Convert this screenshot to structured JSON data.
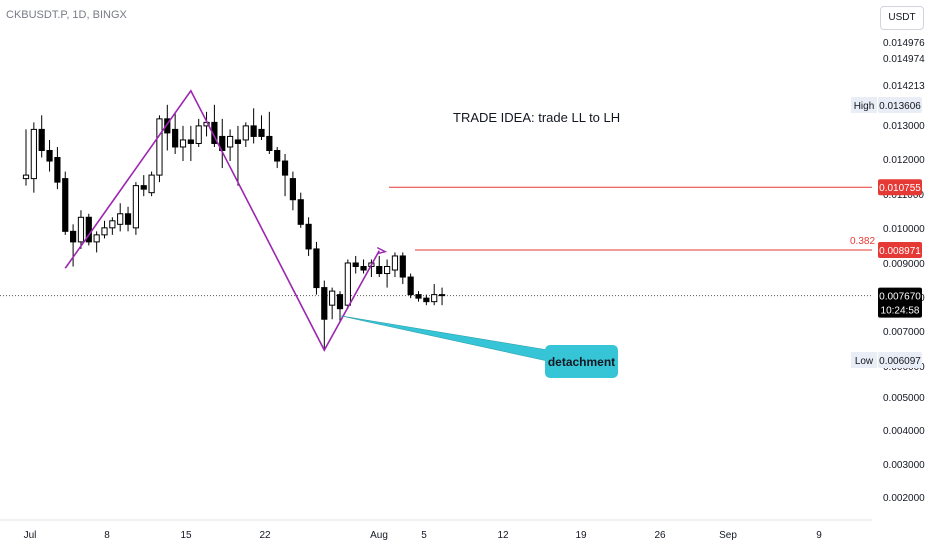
{
  "header": {
    "symbol": "CKBUSDT.P, 1D, BINGX"
  },
  "currency_label": "USDT",
  "colors": {
    "up": "#ffffff",
    "down": "#000000",
    "pattern": "#9c27b0",
    "level": "#e53935",
    "callout": "#36c5d6",
    "axis_badge": "#e53935"
  },
  "chart_data": {
    "type": "candlestick",
    "x_ticks": [
      "Jul",
      "8",
      "15",
      "22",
      "Aug",
      "5",
      "12",
      "19",
      "26",
      "Sep",
      "9"
    ],
    "y_ticks": [
      "0.014976",
      "0.014974",
      "0.014213",
      "0.013000",
      "0.012000",
      "0.011000",
      "0.010000",
      "0.009000",
      "0.008000",
      "0.007000",
      "0.006000",
      "0.005000",
      "0.004000",
      "0.003000",
      "0.002000"
    ],
    "ylim": [
      0.00163,
      0.01583
    ],
    "candles": [
      {
        "d": "07-01",
        "o": 0.011,
        "h": 0.0124,
        "l": 0.0108,
        "c": 0.0111
      },
      {
        "d": "07-02",
        "o": 0.011,
        "h": 0.0126,
        "l": 0.0106,
        "c": 0.0124
      },
      {
        "d": "07-03",
        "o": 0.0124,
        "h": 0.0128,
        "l": 0.0116,
        "c": 0.0118
      },
      {
        "d": "07-04",
        "o": 0.0118,
        "h": 0.0121,
        "l": 0.0112,
        "c": 0.0115
      },
      {
        "d": "07-05",
        "o": 0.0116,
        "h": 0.0119,
        "l": 0.0107,
        "c": 0.0109
      },
      {
        "d": "07-06",
        "o": 0.011,
        "h": 0.0112,
        "l": 0.0094,
        "c": 0.0095
      },
      {
        "d": "07-07",
        "o": 0.0095,
        "h": 0.0097,
        "l": 0.0085,
        "c": 0.0092
      },
      {
        "d": "07-08",
        "o": 0.0092,
        "h": 0.0101,
        "l": 0.009,
        "c": 0.0099
      },
      {
        "d": "07-09",
        "o": 0.0099,
        "h": 0.01,
        "l": 0.0091,
        "c": 0.0092
      },
      {
        "d": "07-10",
        "o": 0.0092,
        "h": 0.0095,
        "l": 0.0089,
        "c": 0.0094
      },
      {
        "d": "07-11",
        "o": 0.0094,
        "h": 0.0098,
        "l": 0.0093,
        "c": 0.0096
      },
      {
        "d": "07-12",
        "o": 0.0096,
        "h": 0.0099,
        "l": 0.0094,
        "c": 0.0098
      },
      {
        "d": "07-13",
        "o": 0.0097,
        "h": 0.0103,
        "l": 0.0095,
        "c": 0.01
      },
      {
        "d": "07-14",
        "o": 0.01,
        "h": 0.0102,
        "l": 0.0095,
        "c": 0.0097
      },
      {
        "d": "07-15",
        "o": 0.0096,
        "h": 0.0109,
        "l": 0.0094,
        "c": 0.0108
      },
      {
        "d": "07-16",
        "o": 0.0108,
        "h": 0.0111,
        "l": 0.0105,
        "c": 0.0107
      },
      {
        "d": "07-17",
        "o": 0.0106,
        "h": 0.0112,
        "l": 0.0105,
        "c": 0.0111
      },
      {
        "d": "07-18",
        "o": 0.0111,
        "h": 0.0128,
        "l": 0.0109,
        "c": 0.0127
      },
      {
        "d": "07-19",
        "o": 0.0127,
        "h": 0.0131,
        "l": 0.0118,
        "c": 0.0123
      },
      {
        "d": "07-20",
        "o": 0.0124,
        "h": 0.0129,
        "l": 0.0117,
        "c": 0.0119
      },
      {
        "d": "07-21",
        "o": 0.0119,
        "h": 0.0125,
        "l": 0.0115,
        "c": 0.0121
      },
      {
        "d": "07-22",
        "o": 0.0121,
        "h": 0.0125,
        "l": 0.0115,
        "c": 0.012
      },
      {
        "d": "07-23",
        "o": 0.012,
        "h": 0.0127,
        "l": 0.0119,
        "c": 0.0125
      },
      {
        "d": "07-24",
        "o": 0.0125,
        "h": 0.0129,
        "l": 0.0122,
        "c": 0.0126
      },
      {
        "d": "07-25",
        "o": 0.0126,
        "h": 0.0131,
        "l": 0.0119,
        "c": 0.012
      },
      {
        "d": "07-26",
        "o": 0.0122,
        "h": 0.0127,
        "l": 0.0113,
        "c": 0.0118
      },
      {
        "d": "07-27",
        "o": 0.0119,
        "h": 0.0124,
        "l": 0.0115,
        "c": 0.0122
      },
      {
        "d": "07-28",
        "o": 0.0121,
        "h": 0.0125,
        "l": 0.0108,
        "c": 0.012
      },
      {
        "d": "07-29",
        "o": 0.0121,
        "h": 0.0126,
        "l": 0.0119,
        "c": 0.0125
      },
      {
        "d": "07-30",
        "o": 0.0125,
        "h": 0.013,
        "l": 0.012,
        "c": 0.0122
      },
      {
        "d": "07-31",
        "o": 0.0124,
        "h": 0.0128,
        "l": 0.0121,
        "c": 0.0122
      },
      {
        "d": "08-01",
        "o": 0.0122,
        "h": 0.0129,
        "l": 0.0117,
        "c": 0.0118
      },
      {
        "d": "08-02",
        "o": 0.0118,
        "h": 0.0119,
        "l": 0.0113,
        "c": 0.0115
      },
      {
        "d": "08-03",
        "o": 0.0115,
        "h": 0.0117,
        "l": 0.0105,
        "c": 0.0111
      },
      {
        "d": "08-04",
        "o": 0.011,
        "h": 0.0112,
        "l": 0.0101,
        "c": 0.0104
      },
      {
        "d": "08-05",
        "o": 0.0104,
        "h": 0.0106,
        "l": 0.0096,
        "c": 0.0097
      },
      {
        "d": "08-06",
        "o": 0.0097,
        "h": 0.0099,
        "l": 0.0088,
        "c": 0.009
      },
      {
        "d": "08-07",
        "o": 0.009,
        "h": 0.0092,
        "l": 0.0077,
        "c": 0.0079
      },
      {
        "d": "08-08",
        "o": 0.0079,
        "h": 0.0081,
        "l": 0.0061,
        "c": 0.007
      },
      {
        "d": "08-09",
        "o": 0.0074,
        "h": 0.0079,
        "l": 0.007,
        "c": 0.0078
      },
      {
        "d": "08-10",
        "o": 0.0077,
        "h": 0.0078,
        "l": 0.0069,
        "c": 0.0073
      },
      {
        "d": "08-11",
        "o": 0.0074,
        "h": 0.0087,
        "l": 0.0073,
        "c": 0.0086
      },
      {
        "d": "08-12",
        "o": 0.0086,
        "h": 0.0088,
        "l": 0.0083,
        "c": 0.0085
      },
      {
        "d": "08-13",
        "o": 0.0085,
        "h": 0.0087,
        "l": 0.0083,
        "c": 0.0084
      },
      {
        "d": "08-14",
        "o": 0.0085,
        "h": 0.0087,
        "l": 0.0082,
        "c": 0.0086
      },
      {
        "d": "08-15",
        "o": 0.0085,
        "h": 0.0088,
        "l": 0.0082,
        "c": 0.0083
      },
      {
        "d": "08-16",
        "o": 0.0083,
        "h": 0.0087,
        "l": 0.0079,
        "c": 0.0085
      },
      {
        "d": "08-17",
        "o": 0.0084,
        "h": 0.0089,
        "l": 0.0082,
        "c": 0.0088
      },
      {
        "d": "08-18",
        "o": 0.0088,
        "h": 0.0089,
        "l": 0.008,
        "c": 0.0082
      },
      {
        "d": "08-19",
        "o": 0.0082,
        "h": 0.0083,
        "l": 0.0076,
        "c": 0.0077
      },
      {
        "d": "08-20",
        "o": 0.0077,
        "h": 0.0078,
        "l": 0.0075,
        "c": 0.0076
      },
      {
        "d": "08-21",
        "o": 0.0076,
        "h": 0.0077,
        "l": 0.0074,
        "c": 0.0075
      },
      {
        "d": "08-22",
        "o": 0.0075,
        "h": 0.008,
        "l": 0.0074,
        "c": 0.0077
      },
      {
        "d": "08-23",
        "o": 0.0077,
        "h": 0.0079,
        "l": 0.0074,
        "c": 0.0077
      }
    ],
    "pattern_points": [
      {
        "d": "07-06",
        "v": 0.00845
      },
      {
        "d": "07-22",
        "v": 0.0135
      },
      {
        "d": "08-08",
        "v": 0.00612
      },
      {
        "d": "08-15",
        "v": 0.00895
      }
    ],
    "levels": [
      {
        "value": 0.010755,
        "label": "0.010755"
      },
      {
        "value": 0.008971,
        "label": "0.008971",
        "fib": "0.382"
      }
    ],
    "current_price": {
      "value": 0.00767,
      "label": "0.007670",
      "countdown": "10:24:58"
    },
    "high": {
      "label": "High",
      "value": "0.013606"
    },
    "low": {
      "label": "Low",
      "value": "0.006097"
    },
    "annotations": {
      "trade_idea": "TRADE IDEA: trade LL to LH",
      "callout": "detachment"
    }
  }
}
